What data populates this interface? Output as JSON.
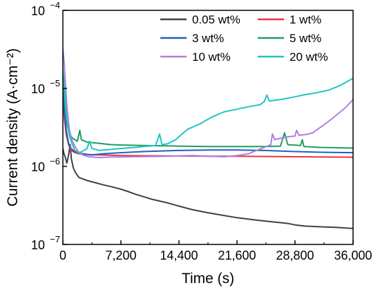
{
  "chart_data": {
    "type": "line",
    "xlabel": "Time (s)",
    "ylabel": "Current density (A·cm⁻²)",
    "x_range": [
      0,
      36000
    ],
    "x_ticks": [
      {
        "value": 0,
        "label": "0"
      },
      {
        "value": 7200,
        "label": "7,200"
      },
      {
        "value": 14400,
        "label": "14,400"
      },
      {
        "value": 21600,
        "label": "21,600"
      },
      {
        "value": 28800,
        "label": "28,800"
      },
      {
        "value": 36000,
        "label": "36,000"
      }
    ],
    "y_scale": "log",
    "y_range": [
      1e-07,
      0.0001
    ],
    "y_ticks": [
      {
        "value": 1e-07,
        "mantissa": "10",
        "exp": "−7"
      },
      {
        "value": 1e-06,
        "mantissa": "10",
        "exp": "−6"
      },
      {
        "value": 1e-05,
        "mantissa": "10",
        "exp": "−5"
      },
      {
        "value": 0.0001,
        "mantissa": "10",
        "exp": "−4"
      }
    ],
    "grid": false,
    "legend": {
      "placement": "top-right",
      "columns": 2
    },
    "series": [
      {
        "name": "0.05 wt%",
        "color": "#404040",
        "points": [
          [
            0,
            1.7e-06
          ],
          [
            100,
            1.5e-06
          ],
          [
            300,
            1.3e-06
          ],
          [
            500,
            1.1e-06
          ],
          [
            700,
            1.4e-06
          ],
          [
            900,
            1.9e-06
          ],
          [
            1050,
            1.25e-06
          ],
          [
            1300,
            9.5e-07
          ],
          [
            1600,
            8.2e-07
          ],
          [
            2000,
            7.2e-07
          ],
          [
            3000,
            6.6e-07
          ],
          [
            4000,
            6.2e-07
          ],
          [
            5000,
            5.8e-07
          ],
          [
            6000,
            5.5e-07
          ],
          [
            7200,
            5.1e-07
          ],
          [
            8000,
            4.8e-07
          ],
          [
            9000,
            4.4e-07
          ],
          [
            10000,
            4.1e-07
          ],
          [
            11000,
            3.8e-07
          ],
          [
            12000,
            3.6e-07
          ],
          [
            13000,
            3.4e-07
          ],
          [
            14400,
            3.1e-07
          ],
          [
            16000,
            2.8e-07
          ],
          [
            18000,
            2.55e-07
          ],
          [
            20000,
            2.35e-07
          ],
          [
            21600,
            2.2e-07
          ],
          [
            24000,
            2.05e-07
          ],
          [
            26000,
            1.95e-07
          ],
          [
            28000,
            1.85e-07
          ],
          [
            28800,
            1.78e-07
          ],
          [
            30000,
            1.72e-07
          ],
          [
            32000,
            1.68e-07
          ],
          [
            34000,
            1.65e-07
          ],
          [
            36000,
            1.6e-07
          ]
        ]
      },
      {
        "name": "1 wt%",
        "color": "#e8353b",
        "points": [
          [
            0,
            7e-06
          ],
          [
            200,
            4e-06
          ],
          [
            400,
            2.6e-06
          ],
          [
            700,
            1.9e-06
          ],
          [
            1000,
            1.6e-06
          ],
          [
            1500,
            1.5e-06
          ],
          [
            2000,
            1.45e-06
          ],
          [
            3000,
            1.42e-06
          ],
          [
            5000,
            1.4e-06
          ],
          [
            7200,
            1.38e-06
          ],
          [
            10000,
            1.37e-06
          ],
          [
            14400,
            1.36e-06
          ],
          [
            18000,
            1.35e-06
          ],
          [
            21600,
            1.35e-06
          ],
          [
            25000,
            1.34e-06
          ],
          [
            28800,
            1.33e-06
          ],
          [
            32000,
            1.32e-06
          ],
          [
            36000,
            1.31e-06
          ]
        ]
      },
      {
        "name": "3 wt%",
        "color": "#1f5fbf",
        "points": [
          [
            0,
            9e-06
          ],
          [
            200,
            5e-06
          ],
          [
            400,
            3e-06
          ],
          [
            700,
            2e-06
          ],
          [
            1000,
            1.7e-06
          ],
          [
            1500,
            1.55e-06
          ],
          [
            2500,
            1.45e-06
          ],
          [
            3500,
            1.4e-06
          ],
          [
            5000,
            1.45e-06
          ],
          [
            7200,
            1.5e-06
          ],
          [
            10000,
            1.55e-06
          ],
          [
            14400,
            1.6e-06
          ],
          [
            18000,
            1.62e-06
          ],
          [
            21600,
            1.62e-06
          ],
          [
            25000,
            1.6e-06
          ],
          [
            28800,
            1.55e-06
          ],
          [
            32000,
            1.52e-06
          ],
          [
            36000,
            1.5e-06
          ]
        ]
      },
      {
        "name": "5 wt%",
        "color": "#1e9e5f",
        "points": [
          [
            0,
            1.3e-05
          ],
          [
            200,
            7e-06
          ],
          [
            500,
            3.5e-06
          ],
          [
            800,
            2.6e-06
          ],
          [
            1200,
            2.3e-06
          ],
          [
            1800,
            2.1e-06
          ],
          [
            2100,
            2.9e-06
          ],
          [
            2300,
            2.2e-06
          ],
          [
            3000,
            2.05e-06
          ],
          [
            4000,
            2e-06
          ],
          [
            5000,
            1.95e-06
          ],
          [
            6000,
            1.9e-06
          ],
          [
            7200,
            1.88e-06
          ],
          [
            10000,
            1.85e-06
          ],
          [
            14400,
            1.82e-06
          ],
          [
            18000,
            1.8e-06
          ],
          [
            21600,
            1.8e-06
          ],
          [
            25000,
            1.8e-06
          ],
          [
            27000,
            1.82e-06
          ],
          [
            27500,
            2.7e-06
          ],
          [
            27900,
            1.9e-06
          ],
          [
            29500,
            1.85e-06
          ],
          [
            29700,
            2.2e-06
          ],
          [
            29900,
            1.8e-06
          ],
          [
            32000,
            1.75e-06
          ],
          [
            36000,
            1.72e-06
          ]
        ]
      },
      {
        "name": "10 wt%",
        "color": "#b07ee0",
        "points": [
          [
            0,
            3.2e-05
          ],
          [
            150,
            2.2e-05
          ],
          [
            300,
            1.2e-05
          ],
          [
            500,
            6e-06
          ],
          [
            800,
            3e-06
          ],
          [
            1100,
            2.2e-06
          ],
          [
            1500,
            1.8e-06
          ],
          [
            2000,
            1.5e-06
          ],
          [
            2500,
            1.4e-06
          ],
          [
            3200,
            1.33e-06
          ],
          [
            4500,
            1.3e-06
          ],
          [
            6000,
            1.32e-06
          ],
          [
            7200,
            1.32e-06
          ],
          [
            9000,
            1.33e-06
          ],
          [
            11000,
            1.34e-06
          ],
          [
            13000,
            1.35e-06
          ],
          [
            14400,
            1.36e-06
          ],
          [
            16000,
            1.38e-06
          ],
          [
            18000,
            1.35e-06
          ],
          [
            20000,
            1.33e-06
          ],
          [
            21600,
            1.38e-06
          ],
          [
            23000,
            1.45e-06
          ],
          [
            24000,
            1.6e-06
          ],
          [
            25000,
            1.75e-06
          ],
          [
            25800,
            1.9e-06
          ],
          [
            26000,
            2.6e-06
          ],
          [
            26300,
            2.2e-06
          ],
          [
            27000,
            2.3e-06
          ],
          [
            28000,
            2.4e-06
          ],
          [
            28800,
            2.45e-06
          ],
          [
            29000,
            2.9e-06
          ],
          [
            29300,
            2.5e-06
          ],
          [
            30500,
            2.6e-06
          ],
          [
            31000,
            2.7e-06
          ],
          [
            32000,
            3.2e-06
          ],
          [
            33000,
            3.8e-06
          ],
          [
            34000,
            4.6e-06
          ],
          [
            35000,
            5.6e-06
          ],
          [
            36000,
            7.2e-06
          ]
        ]
      },
      {
        "name": "20 wt%",
        "color": "#1fc4c4",
        "points": [
          [
            0,
            1.7e-05
          ],
          [
            150,
            1.2e-05
          ],
          [
            300,
            7e-06
          ],
          [
            500,
            4e-06
          ],
          [
            800,
            2.5e-06
          ],
          [
            1100,
            2e-06
          ],
          [
            1500,
            1.6e-06
          ],
          [
            2000,
            1.5e-06
          ],
          [
            2600,
            1.6e-06
          ],
          [
            3000,
            1.7e-06
          ],
          [
            3300,
            2.1e-06
          ],
          [
            3600,
            1.7e-06
          ],
          [
            4500,
            1.6e-06
          ],
          [
            6000,
            1.65e-06
          ],
          [
            7200,
            1.7e-06
          ],
          [
            9000,
            1.75e-06
          ],
          [
            10000,
            1.8e-06
          ],
          [
            11500,
            1.85e-06
          ],
          [
            12000,
            2.6e-06
          ],
          [
            12300,
            1.9e-06
          ],
          [
            13000,
            1.95e-06
          ],
          [
            14000,
            2.2e-06
          ],
          [
            14400,
            2.4e-06
          ],
          [
            15500,
            3e-06
          ],
          [
            17000,
            3.5e-06
          ],
          [
            18500,
            4.3e-06
          ],
          [
            20000,
            5e-06
          ],
          [
            21600,
            5.4e-06
          ],
          [
            23000,
            5.8e-06
          ],
          [
            24500,
            6.2e-06
          ],
          [
            25000,
            6.8e-06
          ],
          [
            25300,
            8.2e-06
          ],
          [
            25600,
            6.9e-06
          ],
          [
            27000,
            7.2e-06
          ],
          [
            28800,
            7.8e-06
          ],
          [
            30000,
            8.3e-06
          ],
          [
            31500,
            8.8e-06
          ],
          [
            33000,
            9.5e-06
          ],
          [
            34500,
            1.1e-05
          ],
          [
            36000,
            1.35e-05
          ]
        ]
      }
    ]
  }
}
